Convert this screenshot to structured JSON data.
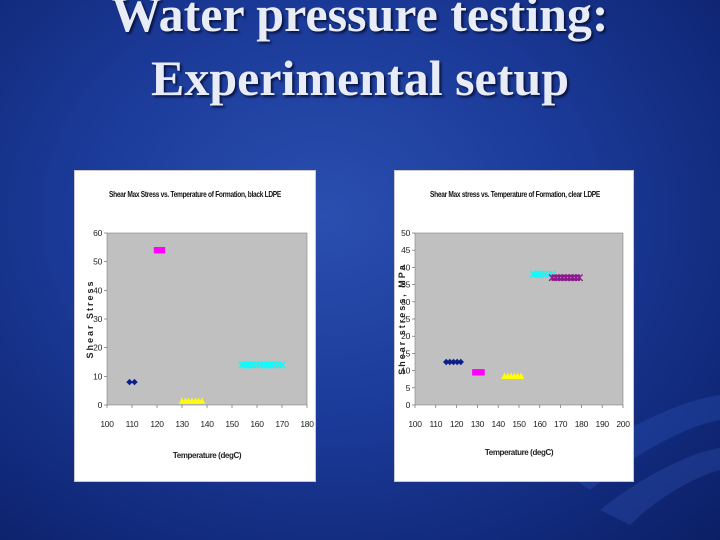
{
  "slide": {
    "title": "Water pressure testing: Experimental setup"
  },
  "colors": {
    "background": "#1b3a98",
    "title_text": "#e8ecf6",
    "plot_area": "#c0c0c0"
  },
  "chart_data": [
    {
      "type": "scatter",
      "title": "Shear Max Stress vs. Temperature of Formation, black LDPE",
      "xlabel": "Temperature (degC)",
      "ylabel": "Shear Stress",
      "xlim": [
        100,
        180
      ],
      "ylim": [
        0,
        60
      ],
      "xticks": [
        100,
        110,
        120,
        130,
        140,
        150,
        160,
        170,
        180
      ],
      "yticks": [
        0,
        10,
        20,
        30,
        40,
        50,
        60
      ],
      "grid": false,
      "series": [
        {
          "color": "#0a1e8c",
          "marker": "diamond",
          "x": [
            109,
            111
          ],
          "y": [
            8,
            8
          ]
        },
        {
          "color": "#ff00ff",
          "marker": "square",
          "x": [
            120,
            122
          ],
          "y": [
            54,
            54
          ]
        },
        {
          "color": "#ffff00",
          "marker": "triangle",
          "x": [
            130,
            138
          ],
          "y": [
            1.5,
            1.5
          ]
        },
        {
          "color": "#00ffff",
          "marker": "x",
          "x": [
            154,
            170
          ],
          "y": [
            14,
            14
          ]
        }
      ]
    },
    {
      "type": "scatter",
      "title": "Shear Max stress vs. Temperature of Formation, clear LDPE",
      "xlabel": "Temperature (degC)",
      "ylabel": "Shear stress, MPa",
      "xlim": [
        100,
        200
      ],
      "ylim": [
        0,
        50
      ],
      "xticks": [
        100,
        110,
        120,
        130,
        140,
        150,
        160,
        170,
        180,
        190,
        200
      ],
      "yticks": [
        0,
        5,
        10,
        15,
        20,
        25,
        30,
        35,
        40,
        45,
        50
      ],
      "grid": false,
      "series": [
        {
          "color": "#0a1e8c",
          "marker": "diamond",
          "x": [
            115,
            122
          ],
          "y": [
            12.5,
            12.5
          ]
        },
        {
          "color": "#ff00ff",
          "marker": "square",
          "x": [
            129,
            132
          ],
          "y": [
            9.5,
            9.5
          ]
        },
        {
          "color": "#ffff00",
          "marker": "triangle",
          "x": [
            143,
            151
          ],
          "y": [
            8.5,
            8.5
          ]
        },
        {
          "color": "#00ffff",
          "marker": "x",
          "x": [
            157,
            166
          ],
          "y": [
            38,
            38
          ]
        },
        {
          "color": "#8b1a8b",
          "marker": "star",
          "x": [
            166,
            179
          ],
          "y": [
            37,
            37
          ]
        }
      ]
    }
  ]
}
